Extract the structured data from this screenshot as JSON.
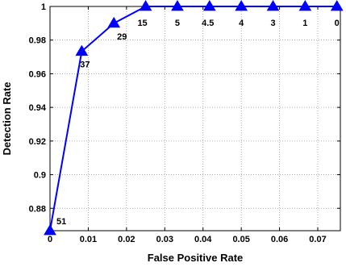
{
  "chart_data": {
    "type": "line",
    "xlabel": "False Positive Rate",
    "ylabel": "Detection Rate",
    "xlim": [
      0,
      0.0759
    ],
    "ylim": [
      0.8667,
      1.0
    ],
    "grid": true,
    "x_ticks": [
      0,
      0.01,
      0.02,
      0.03,
      0.04,
      0.05,
      0.06,
      0.07
    ],
    "x_tick_labels": [
      "0",
      "0.01",
      "0.02",
      "0.03",
      "0.04",
      "0.05",
      "0.06",
      "0.07"
    ],
    "y_ticks": [
      0.88,
      0.9,
      0.92,
      0.94,
      0.96,
      0.98,
      1.0
    ],
    "y_tick_labels": [
      "0.88",
      "0.9",
      "0.92",
      "0.94",
      "0.96",
      "0.98",
      "1"
    ],
    "series": [
      {
        "color": "#0000ff",
        "marker": "triangle",
        "x": [
          0,
          0.0083,
          0.0167,
          0.025,
          0.0333,
          0.0417,
          0.05,
          0.0583,
          0.0667,
          0.075
        ],
        "y": [
          0.8667,
          0.9733,
          0.99,
          1.0,
          1.0,
          1.0,
          1.0,
          1.0,
          1.0,
          1.0
        ],
        "point_labels": [
          "51",
          "37",
          "29",
          "15",
          "5",
          "4.5",
          "4",
          "3",
          "1",
          "0"
        ]
      }
    ]
  }
}
